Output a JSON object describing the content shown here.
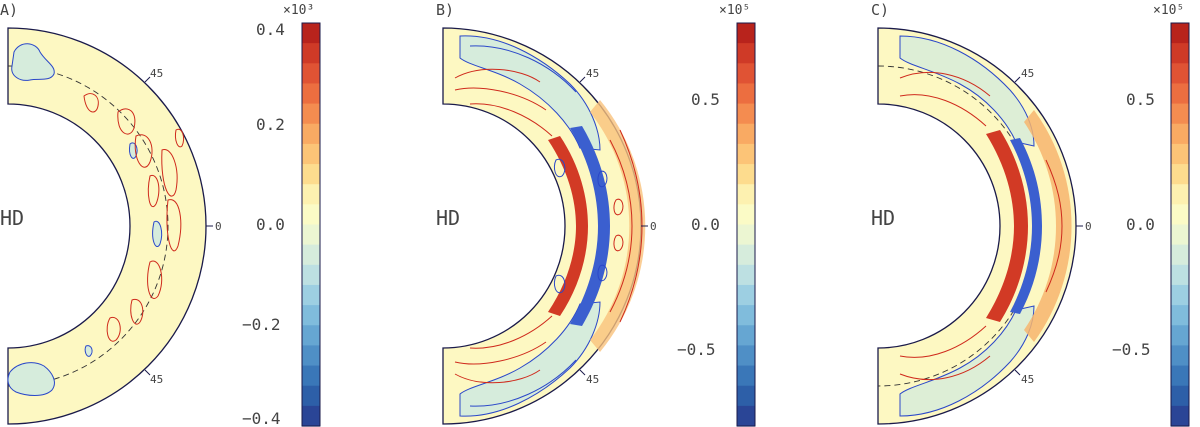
{
  "panels": [
    {
      "label": "A)",
      "tag": "HD",
      "tick_top": "45",
      "tick_mid": "0",
      "tick_bot": "45"
    },
    {
      "label": "B)",
      "tag": "HD",
      "tick_top": "45",
      "tick_mid": "0",
      "tick_bot": "45"
    },
    {
      "label": "C)",
      "tag": "HD",
      "tick_top": "45",
      "tick_mid": "0",
      "tick_bot": "45"
    }
  ],
  "chart_data": [
    {
      "type": "heatmap",
      "title": "",
      "scale_label": "×10³",
      "colorbar": {
        "min": -0.4,
        "max": 0.4,
        "ticks": [
          -0.4,
          -0.2,
          0.0,
          0.2,
          0.4
        ],
        "tick_labels": [
          "−0.4",
          "−0.2",
          "0.0",
          "0.2",
          "0.4"
        ]
      },
      "domain": {
        "shape": "meridional half-annulus",
        "latitude_ticks": [
          "45",
          "0",
          "45"
        ]
      },
      "features": "weak patchy red contours near dashed mid-depth line, sparse blue patches at high latitudes"
    },
    {
      "type": "heatmap",
      "title": "",
      "scale_label": "×10⁵",
      "colorbar": {
        "min": -0.8,
        "max": 0.8,
        "ticks": [
          -0.5,
          0.0,
          0.5
        ],
        "tick_labels": [
          "−0.5",
          "0.0",
          "0.5"
        ]
      },
      "domain": {
        "shape": "meridional half-annulus",
        "latitude_ticks": [
          "45",
          "0",
          "45"
        ]
      },
      "features": "strong red/blue alternating contours in equatorial region, filamentary structures at mid latitudes"
    },
    {
      "type": "heatmap",
      "title": "",
      "scale_label": "×10⁵",
      "colorbar": {
        "min": -0.8,
        "max": 0.8,
        "ticks": [
          -0.5,
          0.0,
          0.5
        ],
        "tick_labels": [
          "−0.5",
          "0.0",
          "0.5"
        ]
      },
      "domain": {
        "shape": "meridional half-annulus",
        "latitude_ticks": [
          "45",
          "0",
          "45"
        ]
      },
      "features": "smooth red and blue bands near equator, orange outer layer, pale green at high latitudes"
    }
  ],
  "colors": {
    "background": "#fdf8c2",
    "outline": "#1a1a4a",
    "red": "#cf2a1c",
    "blue": "#2a47c9",
    "colormap": [
      "#2a4596",
      "#2d5fa8",
      "#3a77b8",
      "#4f8fc6",
      "#66a6d2",
      "#80bcdc",
      "#9dcfe2",
      "#bde0e2",
      "#d6ecdc",
      "#ecf6d2",
      "#fbfbc6",
      "#fdf1b0",
      "#fddc8e",
      "#fcc477",
      "#f9aa63",
      "#f48c50",
      "#ec6e40",
      "#e05334",
      "#cf3a27",
      "#b8231c"
    ]
  }
}
